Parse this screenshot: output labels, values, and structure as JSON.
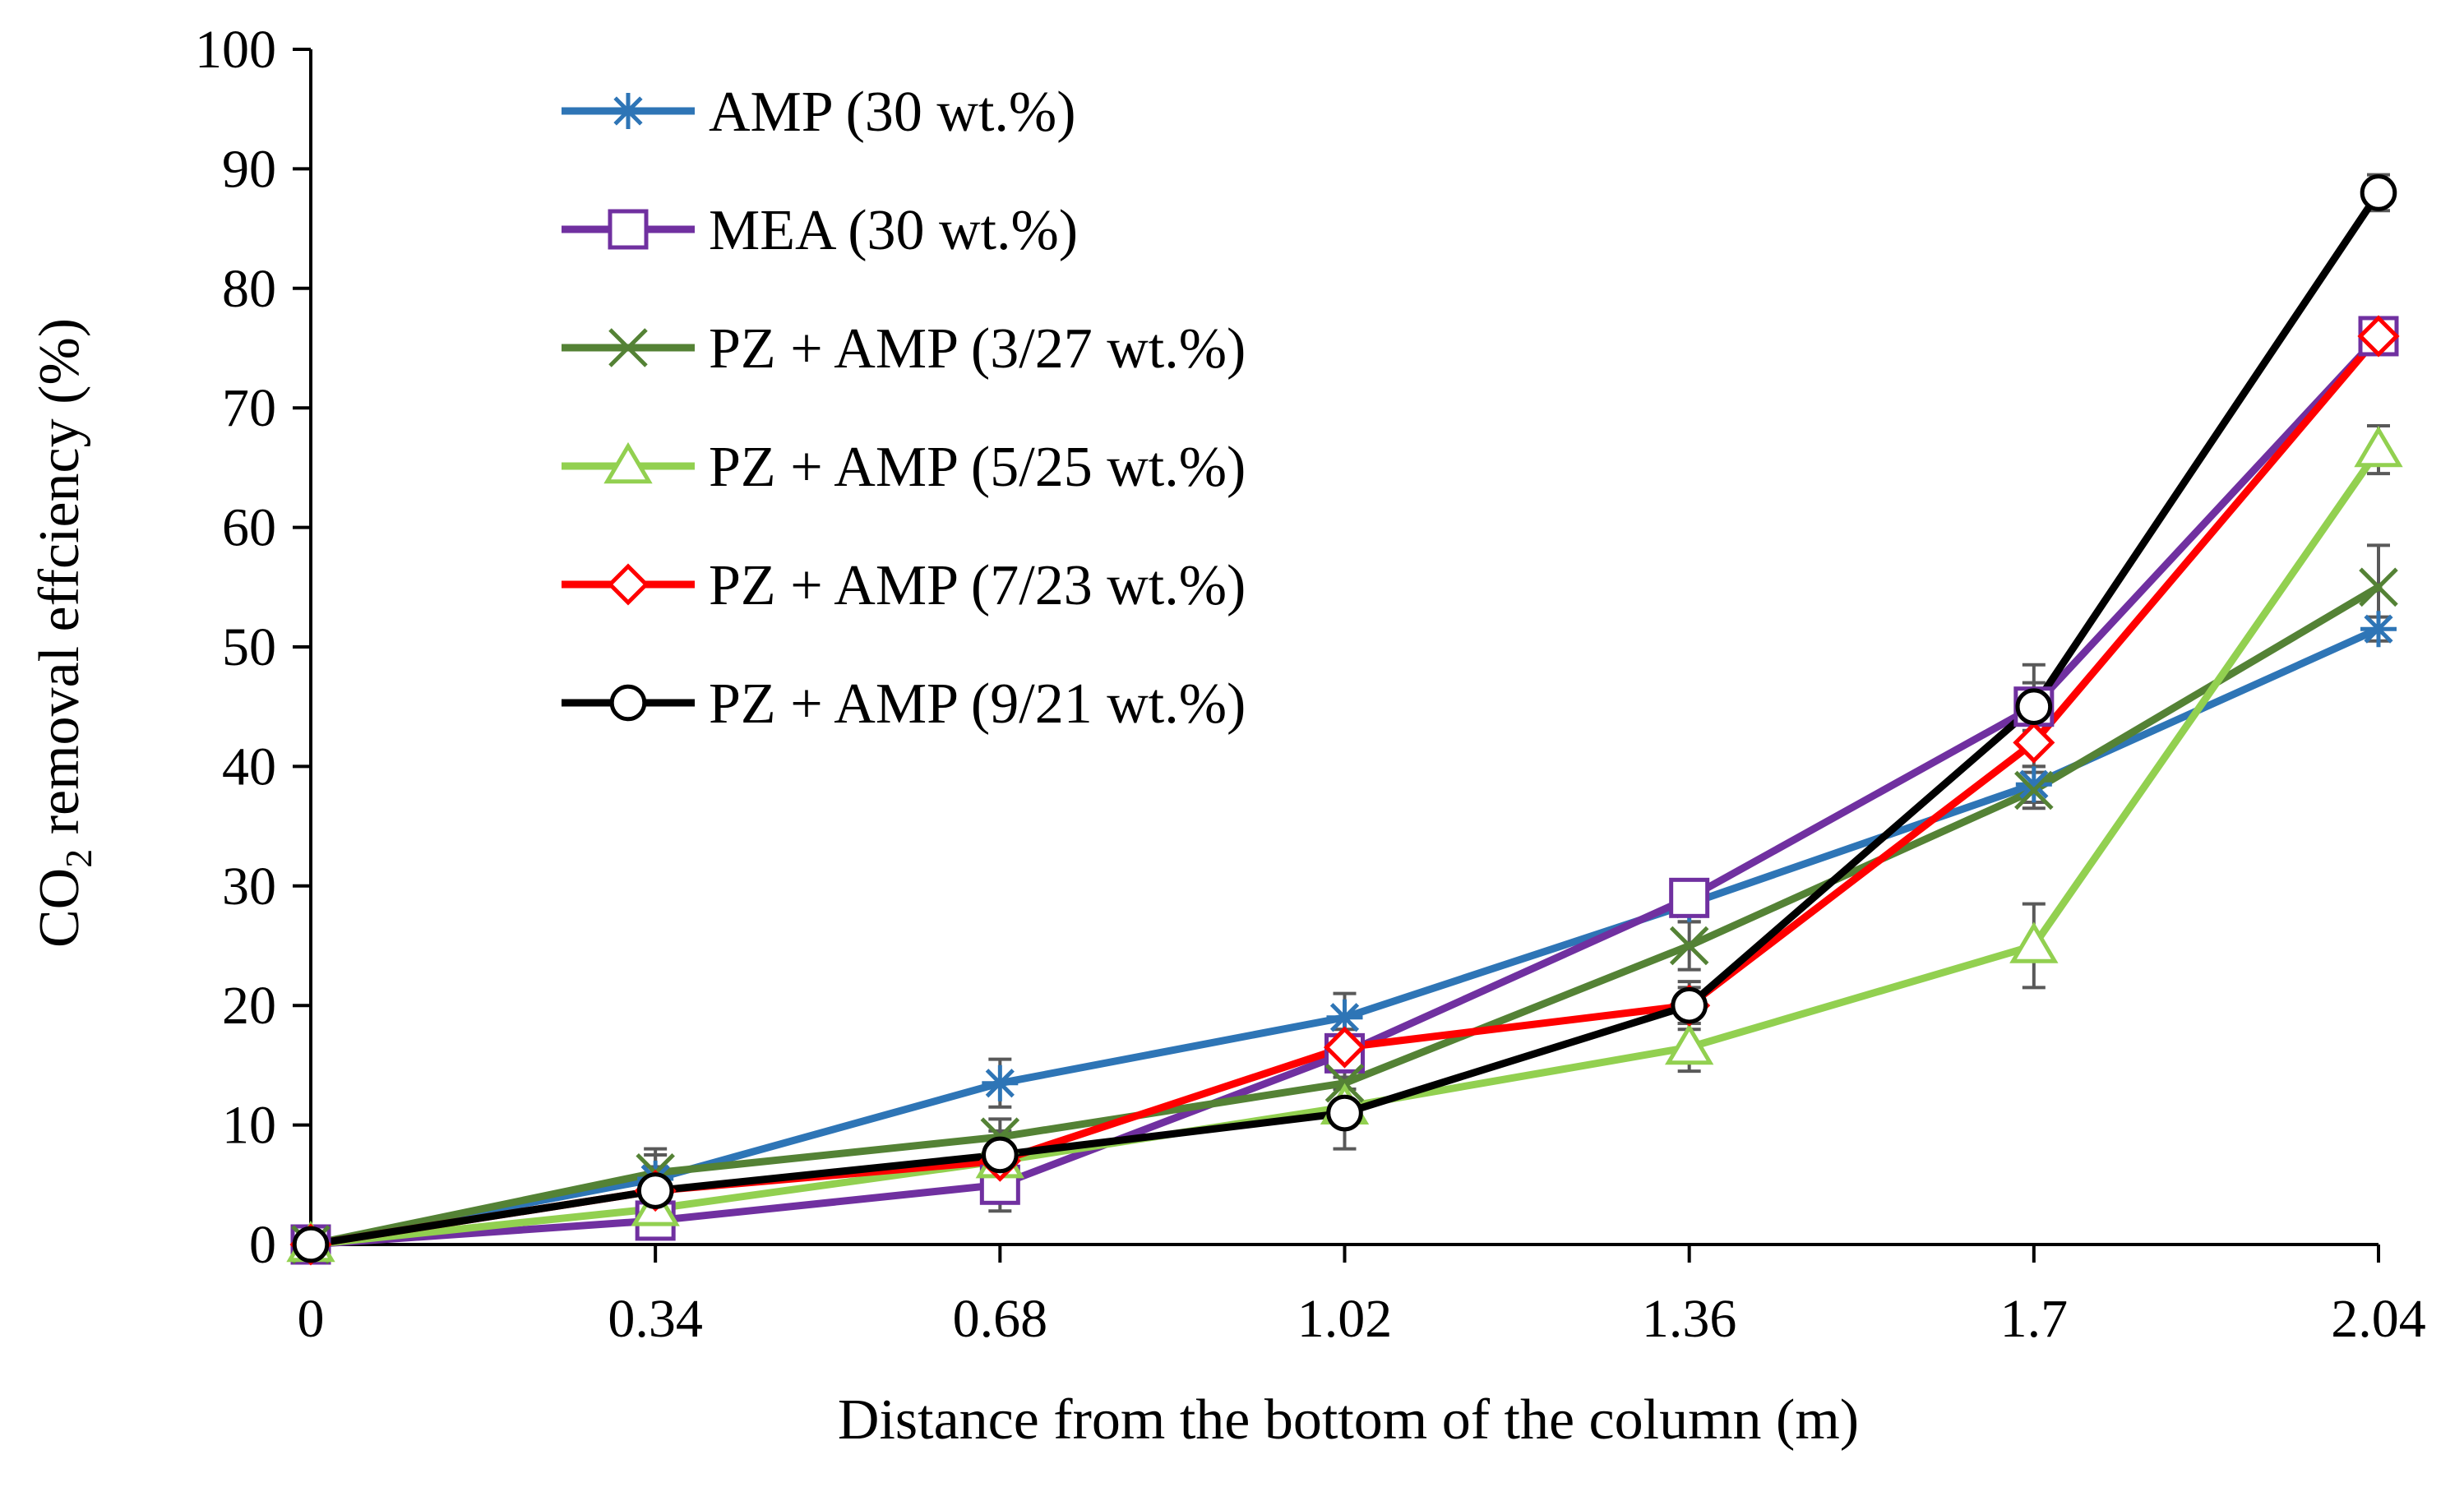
{
  "chart_data": {
    "type": "line",
    "title": "",
    "xlabel": "Distance from the bottom of the column (m)",
    "ylabel": {
      "prefix": "CO",
      "subscript": "2",
      "suffix": " removal effciency (%)"
    },
    "x": [
      0,
      0.34,
      0.68,
      1.02,
      1.36,
      1.7,
      2.04
    ],
    "x_tick_labels": [
      "0",
      "0.34",
      "0.68",
      "1.02",
      "1.36",
      "1.7",
      "2.04"
    ],
    "ylim": [
      0,
      100
    ],
    "y_ticks": [
      0,
      10,
      20,
      30,
      40,
      50,
      60,
      70,
      80,
      90,
      100
    ],
    "y_tick_labels": [
      "0",
      "10",
      "20",
      "30",
      "40",
      "50",
      "60",
      "70",
      "80",
      "90",
      "100"
    ],
    "grid": false,
    "legend_position": "top-left",
    "series": [
      {
        "name": "AMP (30 wt.%)",
        "color": "#2E75B6",
        "marker": "asterisk",
        "values": [
          0,
          5.5,
          13.5,
          19,
          28.5,
          38.5,
          51.5
        ],
        "errors": [
          0,
          2,
          2,
          2,
          1.5,
          1.5,
          1
        ]
      },
      {
        "name": "MEA (30 wt.%)",
        "color": "#7030A0",
        "marker": "square",
        "values": [
          0,
          2,
          5,
          16,
          29,
          45,
          76
        ],
        "errors": [
          0,
          1,
          2.2,
          1.5,
          1.5,
          2,
          1.5
        ]
      },
      {
        "name": "PZ + AMP (3/27 wt.%)",
        "color": "#548235",
        "marker": "x",
        "values": [
          0,
          6,
          9,
          13.5,
          25,
          38,
          55
        ],
        "errors": [
          0,
          2,
          1.5,
          2.5,
          2,
          1.5,
          3.5
        ]
      },
      {
        "name": "PZ + AMP (5/25 wt.%)",
        "color": "#92D050",
        "marker": "triangle",
        "values": [
          0,
          3,
          7,
          11.5,
          16.5,
          25,
          66.5
        ],
        "errors": [
          0,
          1,
          1,
          1.5,
          2,
          3.5,
          2
        ]
      },
      {
        "name": "PZ + AMP (7/23 wt.%)",
        "color": "#FF0000",
        "marker": "diamond",
        "values": [
          0,
          4.5,
          7,
          16.5,
          20,
          42,
          76
        ],
        "errors": [
          0,
          1.5,
          1.5,
          1.5,
          1.5,
          2,
          1.5
        ]
      },
      {
        "name": "PZ + AMP (9/21 wt.%)",
        "color": "#000000",
        "marker": "circle",
        "values": [
          0,
          4.5,
          7.5,
          11,
          20,
          45,
          88
        ],
        "errors": [
          0,
          2,
          2,
          3,
          2,
          3.5,
          1.5
        ]
      }
    ]
  }
}
